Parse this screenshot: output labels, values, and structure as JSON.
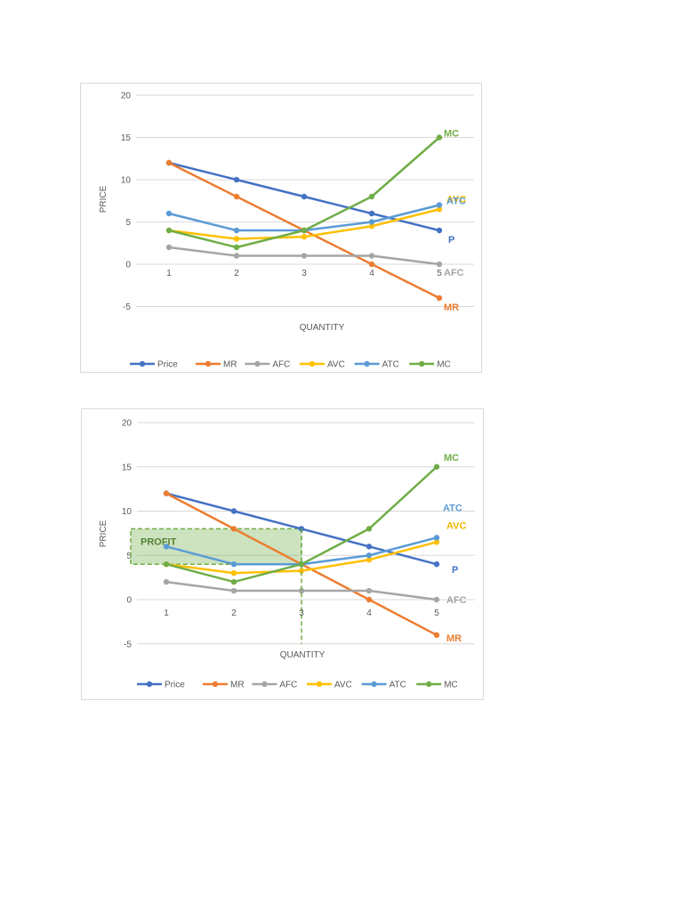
{
  "chart_data": [
    {
      "type": "line",
      "title": "",
      "xlabel": "QUANTITY",
      "ylabel": "PRICE",
      "x": [
        1,
        2,
        3,
        4,
        5
      ],
      "ylim": [
        -5,
        20
      ],
      "yticks": [
        20,
        15,
        10,
        5,
        0,
        -5
      ],
      "xticks": [
        "1",
        "2",
        "3",
        "4",
        "5"
      ],
      "grid": true,
      "legend_position": "bottom",
      "series": [
        {
          "name": "Price",
          "color": "#4472c4",
          "values": [
            12,
            10,
            8,
            6,
            4
          ],
          "end_label": "P"
        },
        {
          "name": "MR",
          "color": "#ed7d31",
          "values": [
            12,
            8,
            4,
            0,
            -4
          ],
          "end_label": "MR"
        },
        {
          "name": "AFC",
          "color": "#a5a5a5",
          "values": [
            2,
            1,
            1,
            1,
            0
          ],
          "end_label": "AFC"
        },
        {
          "name": "AVC",
          "color": "#ffc000",
          "values": [
            4,
            3,
            3.25,
            4.5,
            6.5
          ],
          "end_label": "AVC"
        },
        {
          "name": "ATC",
          "color": "#5b9bd5",
          "values": [
            6,
            4,
            4,
            5,
            7
          ],
          "end_label": "ATC"
        },
        {
          "name": "MC",
          "color": "#70ad47",
          "values": [
            4,
            2,
            4,
            8,
            15
          ],
          "end_label": "MC"
        }
      ]
    },
    {
      "type": "line",
      "title": "",
      "xlabel": "QUANTITY",
      "ylabel": "PRICE",
      "x": [
        1,
        2,
        3,
        4,
        5
      ],
      "ylim": [
        -5,
        20
      ],
      "yticks": [
        20,
        15,
        10,
        5,
        0,
        -5
      ],
      "xticks": [
        "1",
        "2",
        "3",
        "4",
        "5"
      ],
      "grid": true,
      "legend_position": "bottom",
      "annotations": [
        {
          "type": "shaded-rect",
          "label": "PROFIT",
          "x_from": 0.6,
          "x_to": 3,
          "y_from": 4,
          "y_to": 8,
          "color": "#70ad47"
        },
        {
          "type": "dashed-vline",
          "x": 3,
          "y_from": 8,
          "y_to": -5,
          "color": "#70ad47"
        }
      ],
      "series": [
        {
          "name": "Price",
          "color": "#4472c4",
          "values": [
            12,
            10,
            8,
            6,
            4
          ],
          "end_label": "P"
        },
        {
          "name": "MR",
          "color": "#ed7d31",
          "values": [
            12,
            8,
            4,
            0,
            -4
          ],
          "end_label": "MR"
        },
        {
          "name": "AFC",
          "color": "#a5a5a5",
          "values": [
            2,
            1,
            1,
            1,
            0
          ],
          "end_label": "AFC"
        },
        {
          "name": "AVC",
          "color": "#ffc000",
          "values": [
            4,
            3,
            3.25,
            4.5,
            6.5
          ],
          "end_label": "AVC"
        },
        {
          "name": "ATC",
          "color": "#5b9bd5",
          "values": [
            6,
            4,
            4,
            5,
            7
          ],
          "end_label": "ATC"
        },
        {
          "name": "MC",
          "color": "#70ad47",
          "values": [
            4,
            2,
            4,
            8,
            15
          ],
          "end_label": "MC"
        }
      ]
    }
  ]
}
